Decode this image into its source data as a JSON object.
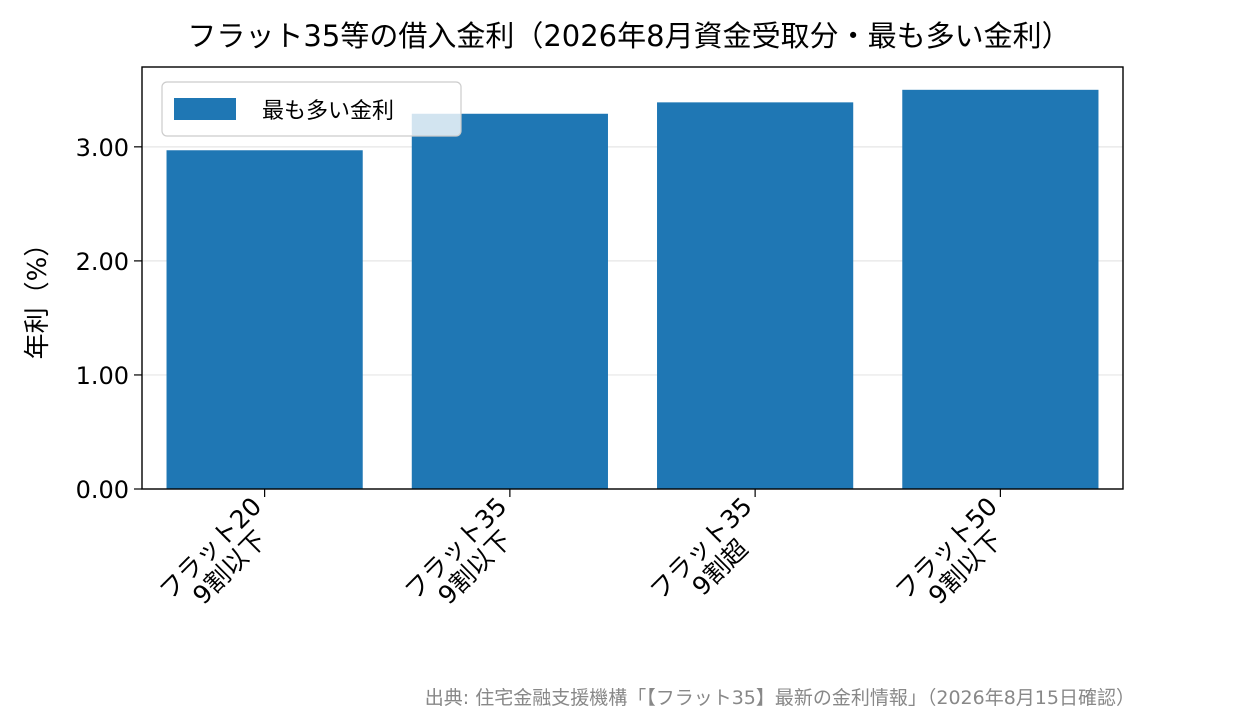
{
  "chart_data": {
    "type": "bar",
    "title": "フラット35等の借入金利（2026年8月資金受取分・最も多い金利）",
    "categories": [
      [
        "フラット20",
        "9割以下"
      ],
      [
        "フラット35",
        "9割以下"
      ],
      [
        "フラット35",
        "9割超"
      ],
      [
        "フラット50",
        "9割以下"
      ]
    ],
    "series": [
      {
        "name": "最も多い金利",
        "values": [
          2.97,
          3.29,
          3.39,
          3.5
        ],
        "color": "#1f77b4"
      }
    ],
    "ylabel": "年利（%）",
    "ylim": [
      0,
      3.7
    ],
    "yticks": [
      "0.00",
      "1.00",
      "2.00",
      "3.00"
    ],
    "ytick_values": [
      0,
      1,
      2,
      3
    ],
    "grid": "y",
    "legend_position": "upper-left",
    "source": "出典: 住宅金融支援機構「【フラット35】最新の金利情報」（2026年8月15日確認）"
  }
}
